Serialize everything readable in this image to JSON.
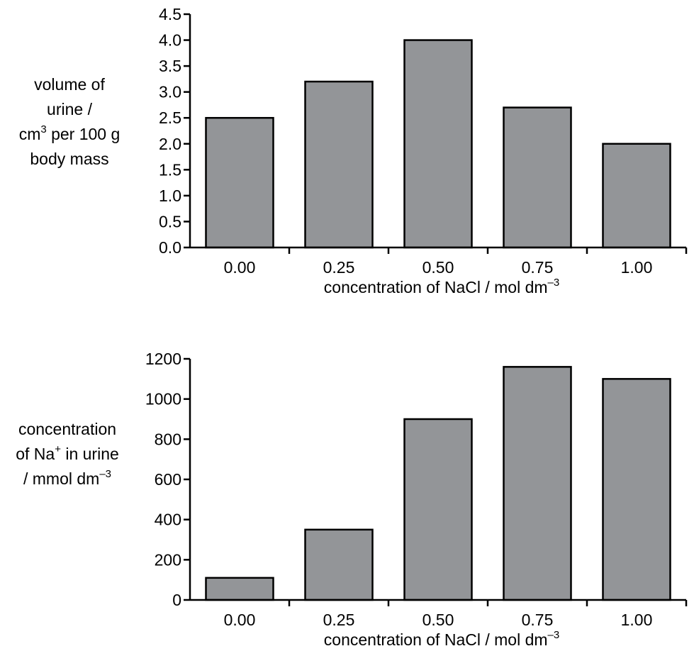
{
  "chart_data": [
    {
      "type": "bar",
      "categories": [
        "0.00",
        "0.25",
        "0.50",
        "0.75",
        "1.00"
      ],
      "values": [
        2.5,
        3.2,
        4.0,
        2.7,
        2.0
      ],
      "ylim": [
        0,
        4.5
      ],
      "yticks": [
        "0.0",
        "0.5",
        "1.0",
        "1.5",
        "2.0",
        "2.5",
        "3.0",
        "3.5",
        "4.0",
        "4.5"
      ],
      "xlabel": {
        "main": "concentration of NaCl / mol dm",
        "sup": "–3"
      },
      "ylabel": {
        "line1": "volume of",
        "line2": "urine /",
        "line3_pre": "cm",
        "line3_sup": "3",
        "line3_post": " per 100 g",
        "line4": "body mass"
      },
      "bar_color": "#939598",
      "grid": false
    },
    {
      "type": "bar",
      "categories": [
        "0.00",
        "0.25",
        "0.50",
        "0.75",
        "1.00"
      ],
      "values": [
        110,
        350,
        900,
        1160,
        1100
      ],
      "ylim": [
        0,
        1200
      ],
      "yticks": [
        "0",
        "200",
        "400",
        "600",
        "800",
        "1000",
        "1200"
      ],
      "xlabel": {
        "main": "concentration of NaCl / mol dm",
        "sup": "–3"
      },
      "ylabel": {
        "line1": "concentration",
        "line2_pre": "of Na",
        "line2_sup": "+",
        "line2_post": " in urine",
        "line3_pre": "/ mmol dm",
        "line3_sup": "–3"
      },
      "bar_color": "#939598",
      "grid": false
    }
  ]
}
